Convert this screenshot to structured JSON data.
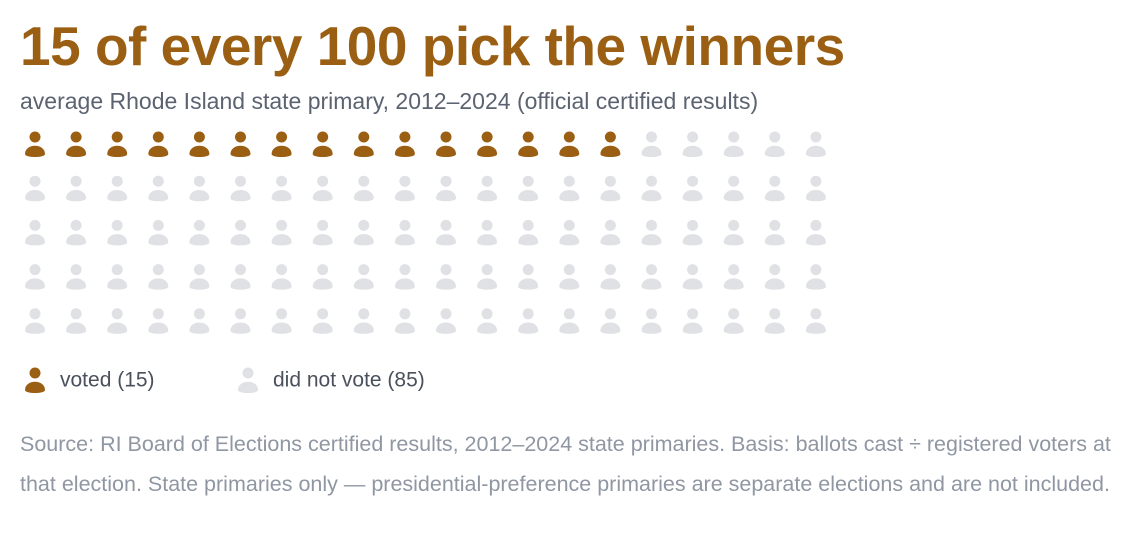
{
  "chart_data": {
    "type": "pictogram",
    "title": "15 of every 100 pick the winners",
    "subtitle": "average Rhode Island state primary, 2012–2024 (official certified results)",
    "series": [
      {
        "name": "voted (15)",
        "color": "#9b5f14",
        "value": 15
      },
      {
        "name": "did not vote (85)",
        "color": "#e0e1e5",
        "value": 85
      }
    ],
    "source": "Source: RI Board of Elections certified results, 2012–2024 state primaries. Basis: ballots cast ÷ registered voters at that election. State primaries only — presidential-preference primaries are separate elections and are not included."
  }
}
